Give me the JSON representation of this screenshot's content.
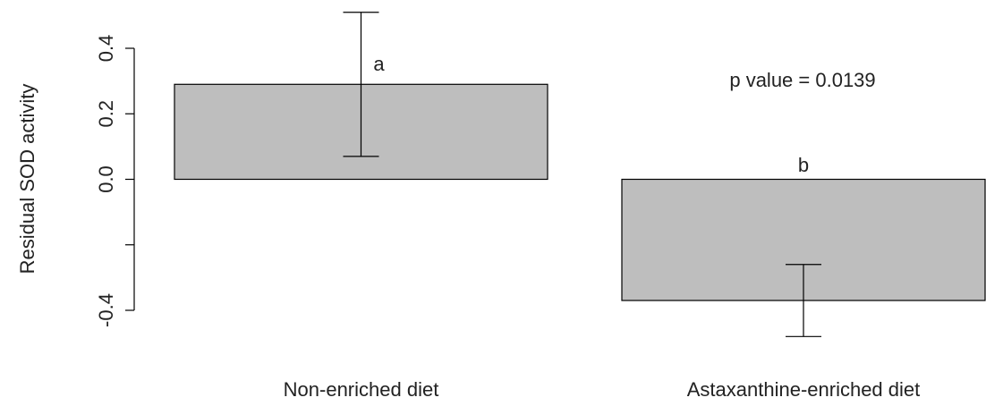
{
  "chart_data": {
    "type": "bar",
    "ylabel": "Residual SOD activity",
    "categories": [
      "Non-enriched diet",
      "Astaxanthine-enriched diet"
    ],
    "values": [
      0.29,
      -0.37
    ],
    "errors": [
      0.22,
      0.11
    ],
    "bar_labels": [
      "a",
      "b"
    ],
    "annotation": "p value = 0.0139",
    "color": "#bebebe",
    "ylim": [
      -0.4,
      0.4
    ],
    "yticks": [
      0.4,
      0.2,
      {
        "value": 0,
        "label": "0.0"
      },
      {
        "value": -0.2,
        "label": null
      },
      -0.4
    ]
  }
}
